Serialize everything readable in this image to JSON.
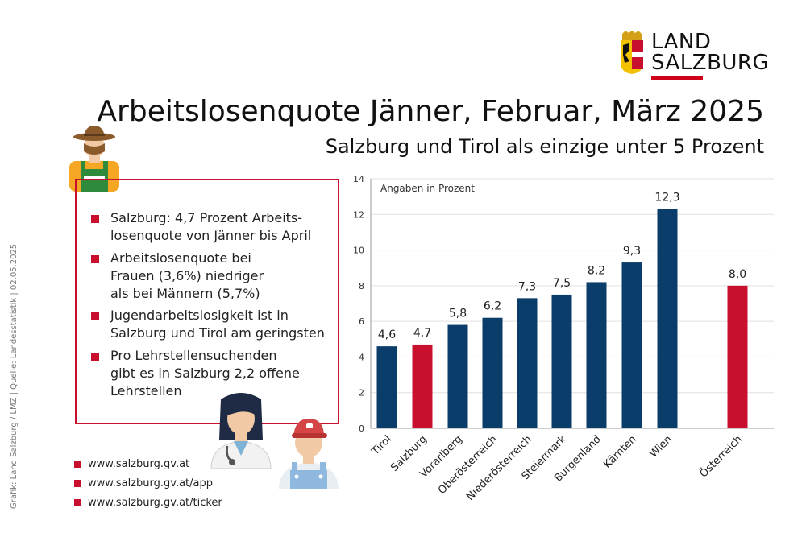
{
  "header": {
    "title": "Arbeitslosenquote Jänner, Februar, März 2025",
    "subtitle": "Salzburg und Tirol als einzige unter 5 Prozent"
  },
  "logo": {
    "line1": "LAND",
    "line2": "SALZBURG"
  },
  "side_text": "Grafik: Land Salzburg / LMZ  |  Quelle: Landesstatistik  |  02.05.2025",
  "info": {
    "bullets": [
      "Salzburg: 4,7 Prozent Arbeits-\nlosenquote von Jänner bis April",
      "Arbeitslosenquote bei\nFrauen (3,6%) niedriger\nals bei Männern (5,7%)",
      "Jugendarbeitslosigkeit ist in\nSalzburg und Tirol am geringsten",
      "Pro Lehrstellensuchenden\ngibt es in Salzburg 2,2 offene\nLehrstellen"
    ]
  },
  "links": [
    "www.salzburg.gv.at",
    "www.salzburg.gv.at/app",
    "www.salzburg.gv.at/ticker"
  ],
  "colors": {
    "navy": "#0b3d6b",
    "red": "#c8102e"
  },
  "chart_data": {
    "type": "bar",
    "note": "Angaben in Prozent",
    "categories": [
      "Tirol",
      "Salzburg",
      "Vorarlberg",
      "Oberösterreich",
      "Niederösterreich",
      "Steiermark",
      "Burgenland",
      "Kärnten",
      "Wien",
      "Österreich"
    ],
    "values": [
      4.6,
      4.7,
      5.8,
      6.2,
      7.3,
      7.5,
      8.2,
      9.3,
      12.3,
      8.0
    ],
    "value_labels": [
      "4,6",
      "4,7",
      "5,8",
      "6,2",
      "7,3",
      "7,5",
      "8,2",
      "9,3",
      "12,3",
      "8,0"
    ],
    "highlight": [
      "Salzburg",
      "Österreich"
    ],
    "yticks": [
      0,
      2,
      4,
      6,
      8,
      10,
      12,
      14
    ],
    "ylim": [
      0,
      14
    ],
    "grid": true
  }
}
